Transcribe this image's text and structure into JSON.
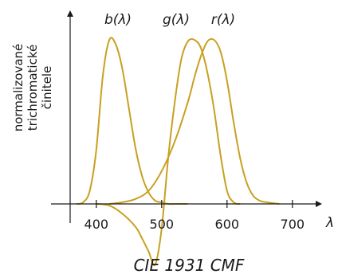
{
  "chart_data": {
    "type": "line",
    "title": "CIE 1931 CMF",
    "ylabel_lines": [
      "normalizované",
      "trichromatické",
      "činitele"
    ],
    "xlabel": "λ",
    "xlim": [
      360,
      700
    ],
    "xticks": [
      "400",
      "500",
      "600",
      "700"
    ],
    "xtick_values": [
      400,
      500,
      600,
      700
    ],
    "ylim": [
      -0.35,
      1.0
    ],
    "grid": false,
    "line_color": "#c8a020",
    "series": [
      {
        "name": "b(λ)",
        "x": [
          370,
          380,
          390,
          400,
          410,
          420,
          430,
          440,
          450,
          460,
          470,
          480,
          490,
          500,
          510,
          520,
          530,
          540
        ],
        "y": [
          0.0,
          0.01,
          0.08,
          0.33,
          0.78,
          1.0,
          0.97,
          0.82,
          0.58,
          0.34,
          0.17,
          0.07,
          0.02,
          0.01,
          0.0,
          0.0,
          0.0,
          0.0
        ]
      },
      {
        "name": "g(λ)",
        "x": [
          400,
          420,
          440,
          460,
          470,
          480,
          490,
          500,
          510,
          520,
          530,
          540,
          550,
          560,
          570,
          580,
          590,
          600,
          610,
          620
        ],
        "y": [
          0.0,
          -0.01,
          -0.06,
          -0.14,
          -0.21,
          -0.29,
          -0.37,
          -0.15,
          0.28,
          0.62,
          0.88,
          0.99,
          1.0,
          0.95,
          0.8,
          0.58,
          0.3,
          0.08,
          0.01,
          0.0
        ]
      },
      {
        "name": "r(λ)",
        "x": [
          420,
          440,
          460,
          480,
          500,
          520,
          540,
          550,
          560,
          570,
          580,
          590,
          600,
          610,
          620,
          630,
          640,
          650,
          660,
          680
        ],
        "y": [
          0.0,
          0.01,
          0.03,
          0.08,
          0.2,
          0.38,
          0.62,
          0.77,
          0.9,
          0.99,
          1.0,
          0.93,
          0.75,
          0.5,
          0.28,
          0.13,
          0.05,
          0.02,
          0.01,
          0.0
        ]
      }
    ]
  }
}
